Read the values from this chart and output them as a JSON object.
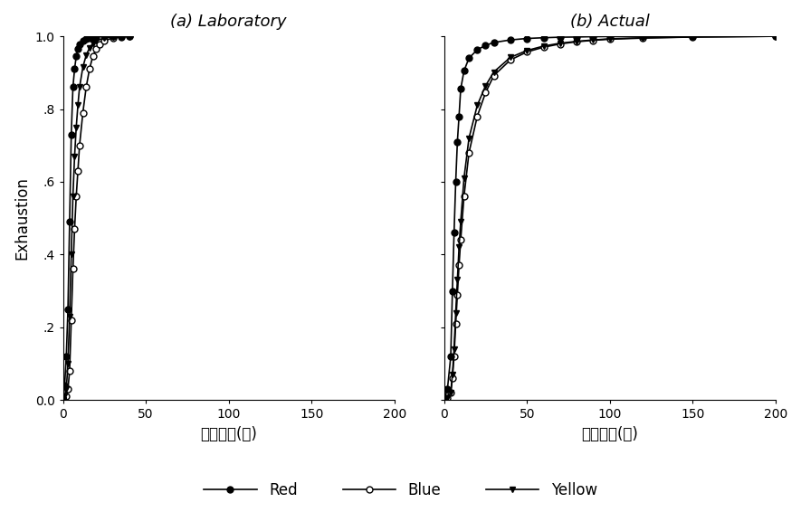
{
  "title_a": "(a) Laboratory",
  "title_b": "(b) Actual",
  "xlabel": "염색시간(분)",
  "ylabel": "Exhaustion",
  "xlim": [
    0,
    200
  ],
  "ylim": [
    0.0,
    1.0
  ],
  "xticks": [
    0,
    50,
    100,
    150,
    200
  ],
  "yticks": [
    0.0,
    0.2,
    0.4,
    0.6,
    0.8,
    1.0
  ],
  "ytick_labels": [
    "0.0",
    ".2",
    ".4",
    ".6",
    ".8",
    "1.0"
  ],
  "legend_labels": [
    "Red",
    "Blue",
    "Yellow"
  ],
  "lab_red_x": [
    0,
    1,
    2,
    3,
    4,
    5,
    6,
    7,
    8,
    9,
    10,
    12,
    14,
    16,
    18,
    20,
    25,
    30,
    35,
    40
  ],
  "lab_red_y": [
    0.0,
    0.04,
    0.12,
    0.25,
    0.49,
    0.73,
    0.86,
    0.91,
    0.945,
    0.965,
    0.978,
    0.988,
    0.993,
    0.996,
    0.998,
    0.999,
    0.9995,
    1.0,
    1.0,
    1.0
  ],
  "lab_blue_x": [
    0,
    1,
    2,
    3,
    4,
    5,
    6,
    7,
    8,
    9,
    10,
    12,
    14,
    16,
    18,
    20,
    22,
    25,
    30,
    35,
    40
  ],
  "lab_blue_y": [
    0.0,
    0.005,
    0.01,
    0.03,
    0.08,
    0.22,
    0.36,
    0.47,
    0.56,
    0.63,
    0.7,
    0.79,
    0.86,
    0.91,
    0.945,
    0.965,
    0.978,
    0.988,
    0.995,
    0.998,
    1.0
  ],
  "lab_yellow_x": [
    0,
    1,
    2,
    3,
    4,
    5,
    6,
    7,
    8,
    9,
    10,
    12,
    14,
    16,
    18,
    20,
    25,
    30,
    35,
    40
  ],
  "lab_yellow_y": [
    0.0,
    0.01,
    0.03,
    0.1,
    0.23,
    0.4,
    0.56,
    0.67,
    0.75,
    0.81,
    0.86,
    0.915,
    0.948,
    0.968,
    0.98,
    0.988,
    0.995,
    0.998,
    0.999,
    1.0
  ],
  "act_red_x": [
    0,
    2,
    4,
    5,
    6,
    7,
    8,
    9,
    10,
    12,
    15,
    20,
    25,
    30,
    40,
    50,
    60,
    70,
    80,
    90,
    100,
    120,
    150,
    200
  ],
  "act_red_y": [
    0.0,
    0.03,
    0.12,
    0.3,
    0.46,
    0.6,
    0.71,
    0.78,
    0.855,
    0.905,
    0.94,
    0.963,
    0.975,
    0.983,
    0.99,
    0.994,
    0.996,
    0.9975,
    0.998,
    0.999,
    0.9992,
    0.9995,
    0.9997,
    1.0
  ],
  "act_blue_x": [
    0,
    2,
    4,
    5,
    6,
    7,
    8,
    9,
    10,
    12,
    15,
    20,
    25,
    30,
    40,
    50,
    60,
    70,
    80,
    90,
    100,
    120,
    150,
    200
  ],
  "act_blue_y": [
    0.0,
    0.005,
    0.02,
    0.06,
    0.12,
    0.21,
    0.29,
    0.37,
    0.44,
    0.56,
    0.68,
    0.78,
    0.845,
    0.892,
    0.935,
    0.957,
    0.97,
    0.979,
    0.985,
    0.989,
    0.992,
    0.995,
    0.998,
    1.0
  ],
  "act_yellow_x": [
    0,
    2,
    4,
    5,
    6,
    7,
    8,
    9,
    10,
    12,
    15,
    20,
    25,
    30,
    40,
    50,
    60,
    70,
    80,
    90,
    100,
    120,
    150,
    200
  ],
  "act_yellow_y": [
    0.0,
    0.005,
    0.02,
    0.07,
    0.14,
    0.24,
    0.33,
    0.42,
    0.49,
    0.61,
    0.72,
    0.81,
    0.864,
    0.902,
    0.942,
    0.961,
    0.973,
    0.981,
    0.986,
    0.99,
    0.993,
    0.996,
    0.998,
    1.0
  ],
  "line_color": "#000000",
  "bg_color": "#ffffff",
  "marker_size": 5,
  "linewidth": 1.2
}
